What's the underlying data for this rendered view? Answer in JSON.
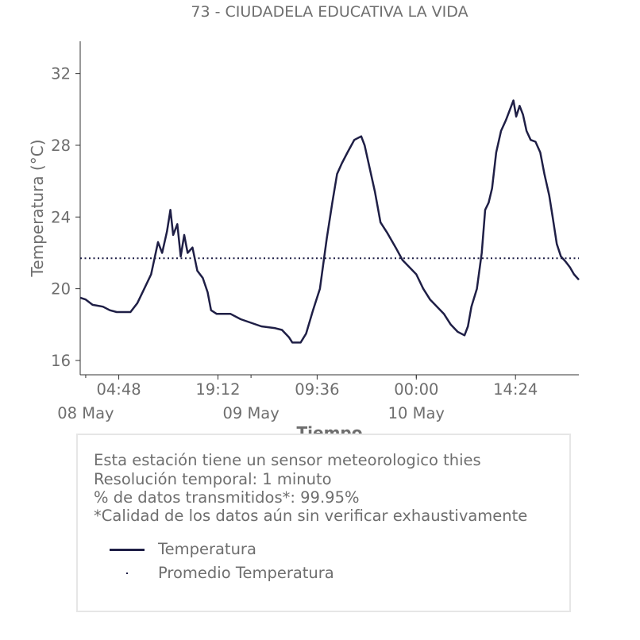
{
  "chart_data": {
    "type": "line",
    "title": "73 - CIUDADELA EDUCATIVA LA VIDA",
    "xlabel": "Tiempo",
    "ylabel": "Temperatura (°C)",
    "ylim": [
      15.2,
      33.8
    ],
    "y_ticks": [
      16,
      20,
      24,
      28,
      32
    ],
    "x_tick_labels": [
      "04:48",
      "19:12",
      "09:36",
      "00:00",
      "14:24"
    ],
    "x_date_labels": [
      "08 May",
      "09 May",
      "10 May"
    ],
    "x_range_hours": [
      -0.8,
      71.6
    ],
    "x_tick_hours": [
      4.8,
      19.2,
      33.6,
      48.0,
      62.4
    ],
    "x_date_hours": [
      0,
      24,
      48
    ],
    "series": [
      {
        "name": "Temperatura",
        "style": "solid",
        "color": "#1f1f46",
        "points": [
          [
            -0.8,
            19.5
          ],
          [
            0,
            19.4
          ],
          [
            1,
            19.1
          ],
          [
            2.5,
            19.0
          ],
          [
            3.5,
            18.8
          ],
          [
            4.5,
            18.7
          ],
          [
            6.5,
            18.7
          ],
          [
            7.5,
            19.2
          ],
          [
            8.5,
            20.0
          ],
          [
            9.5,
            20.8
          ],
          [
            10.5,
            22.6
          ],
          [
            11.1,
            22.0
          ],
          [
            11.8,
            23.2
          ],
          [
            12.3,
            24.4
          ],
          [
            12.7,
            23.0
          ],
          [
            13.3,
            23.6
          ],
          [
            13.8,
            21.8
          ],
          [
            14.3,
            23.0
          ],
          [
            14.8,
            22.0
          ],
          [
            15.5,
            22.3
          ],
          [
            16.2,
            21.0
          ],
          [
            17.0,
            20.6
          ],
          [
            17.7,
            19.8
          ],
          [
            18.2,
            18.8
          ],
          [
            19.0,
            18.6
          ],
          [
            21.0,
            18.6
          ],
          [
            22.5,
            18.3
          ],
          [
            24.0,
            18.1
          ],
          [
            25.5,
            17.9
          ],
          [
            27.5,
            17.8
          ],
          [
            28.5,
            17.7
          ],
          [
            29.5,
            17.3
          ],
          [
            30.0,
            17.0
          ],
          [
            31.2,
            17.0
          ],
          [
            32.0,
            17.5
          ],
          [
            33.0,
            18.8
          ],
          [
            34.0,
            20.0
          ],
          [
            35.0,
            22.8
          ],
          [
            35.8,
            24.8
          ],
          [
            36.5,
            26.4
          ],
          [
            37.2,
            27.0
          ],
          [
            38.0,
            27.6
          ],
          [
            39.0,
            28.3
          ],
          [
            40.0,
            28.5
          ],
          [
            40.5,
            28.0
          ],
          [
            41.3,
            26.6
          ],
          [
            42.0,
            25.4
          ],
          [
            42.8,
            23.7
          ],
          [
            43.8,
            23.1
          ],
          [
            45.0,
            22.3
          ],
          [
            46.0,
            21.6
          ],
          [
            47.0,
            21.2
          ],
          [
            48.0,
            20.8
          ],
          [
            49.0,
            20.0
          ],
          [
            50.0,
            19.4
          ],
          [
            51.0,
            19.0
          ],
          [
            52.0,
            18.6
          ],
          [
            53.0,
            18.0
          ],
          [
            54.0,
            17.6
          ],
          [
            55.0,
            17.4
          ],
          [
            55.5,
            17.9
          ],
          [
            56.0,
            19.0
          ],
          [
            56.8,
            20.0
          ],
          [
            57.5,
            22.0
          ],
          [
            58.0,
            24.4
          ],
          [
            58.5,
            24.8
          ],
          [
            59.0,
            25.6
          ],
          [
            59.6,
            27.6
          ],
          [
            60.3,
            28.8
          ],
          [
            61.0,
            29.4
          ],
          [
            61.6,
            30.0
          ],
          [
            62.1,
            30.5
          ],
          [
            62.5,
            29.6
          ],
          [
            63.0,
            30.2
          ],
          [
            63.5,
            29.7
          ],
          [
            64.0,
            28.8
          ],
          [
            64.6,
            28.3
          ],
          [
            65.3,
            28.2
          ],
          [
            66.0,
            27.6
          ],
          [
            66.6,
            26.4
          ],
          [
            67.3,
            25.2
          ],
          [
            67.8,
            24.0
          ],
          [
            68.4,
            22.5
          ],
          [
            69.0,
            21.8
          ],
          [
            69.7,
            21.5
          ],
          [
            70.3,
            21.2
          ],
          [
            70.9,
            20.8
          ],
          [
            71.6,
            20.5
          ]
        ]
      },
      {
        "name": "Promedio Temperatura",
        "style": "dotted",
        "color": "#1f1f46",
        "value": 21.7
      }
    ],
    "grid": false,
    "legend_position": "below-plot"
  },
  "info": {
    "lines": [
      "Esta estación tiene un sensor meteorologico thies",
      "Resolución temporal: 1 minuto",
      "% de datos transmitidos*: 99.95%",
      "*Calidad de los datos aún sin verificar exhaustivamente"
    ]
  },
  "legend": {
    "items": [
      "Temperatura",
      "Promedio Temperatura"
    ]
  }
}
